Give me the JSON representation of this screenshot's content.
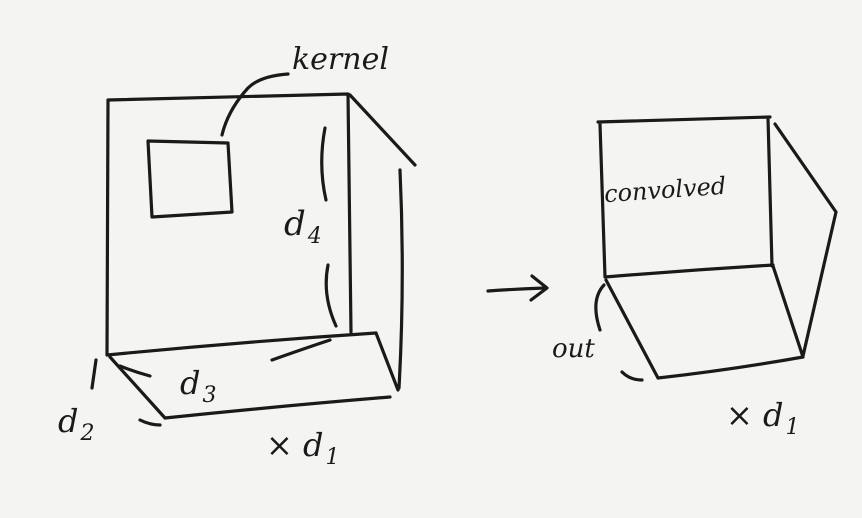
{
  "labels": {
    "kernel": "kernel",
    "d4": {
      "base": "d",
      "sub": "4"
    },
    "d3": {
      "base": "d",
      "sub": "3"
    },
    "d2": {
      "base": "d",
      "sub": "2"
    },
    "x_d1_left": {
      "base": "× d",
      "sub": "1"
    },
    "convolved": "convolved",
    "out": "out",
    "x_d1_right": {
      "base": "× d",
      "sub": "1"
    }
  },
  "style": {
    "ink": "#1a1a1a",
    "paper": "#f4f4f2"
  }
}
